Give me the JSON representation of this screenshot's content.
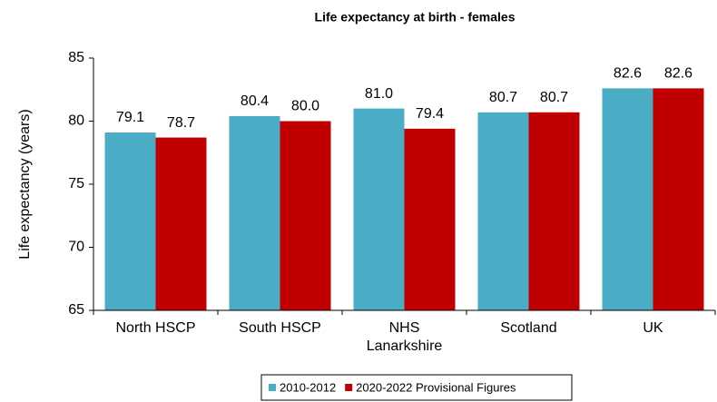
{
  "chart_data": {
    "type": "bar",
    "title": "Life expectancy at birth - females",
    "y_label": "Life expectancy (years)",
    "categories": [
      "North HSCP",
      "South HSCP",
      "NHS Lanarkshire",
      "Scotland",
      "UK"
    ],
    "series": [
      {
        "name": "2010-2012",
        "color": "#4bacc6",
        "values": [
          79.1,
          80.4,
          81.0,
          80.7,
          82.6
        ],
        "value_labels": [
          "79.1",
          "80.4",
          "81.0",
          "80.7",
          "82.6"
        ]
      },
      {
        "name": "2020-2022 Provisional Figures",
        "color": "#c00000",
        "values": [
          78.7,
          80.0,
          79.4,
          80.7,
          82.6
        ],
        "value_labels": [
          "78.7",
          "80.0",
          "79.4",
          "80.7",
          "82.6"
        ]
      }
    ],
    "ylim": [
      65,
      85
    ],
    "yticks": [
      65,
      70,
      75,
      80,
      85
    ],
    "grid": false,
    "legend": "bottom"
  }
}
